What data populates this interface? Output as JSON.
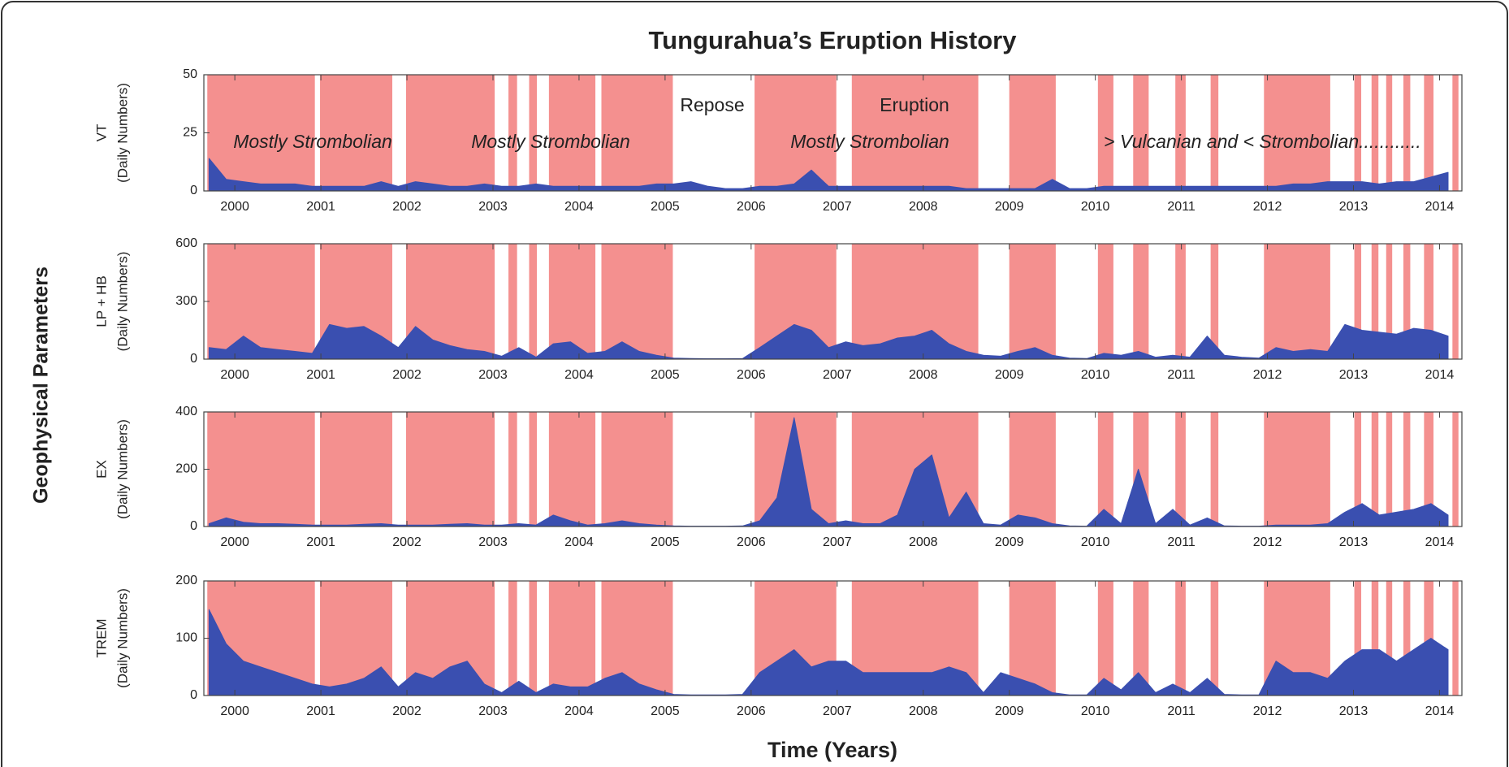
{
  "chart_data": {
    "type": "area",
    "title": "Tungurahua’s Eruption History",
    "xlabel": "Time (Years)",
    "ylabel": "Geophysical Parameters",
    "color": "#3a4fb0",
    "period_color": "#f4908f",
    "xlim": [
      1999.64,
      2014.26
    ],
    "xticks": [
      2000,
      2001,
      2002,
      2003,
      2004,
      2005,
      2006,
      2007,
      2008,
      2009,
      2010,
      2011,
      2012,
      2013,
      2014
    ],
    "eruption_periods": [
      [
        1999.68,
        2000.93
      ],
      [
        2000.99,
        2001.83
      ],
      [
        2001.99,
        2003.02
      ],
      [
        2003.18,
        2003.28
      ],
      [
        2003.42,
        2003.51
      ],
      [
        2003.65,
        2004.19
      ],
      [
        2004.26,
        2005.09
      ],
      [
        2006.04,
        2006.99
      ],
      [
        2007.17,
        2008.64
      ],
      [
        2009.0,
        2009.54
      ],
      [
        2010.03,
        2010.21
      ],
      [
        2010.44,
        2010.62
      ],
      [
        2010.93,
        2011.05
      ],
      [
        2011.34,
        2011.43
      ],
      [
        2011.96,
        2012.73
      ],
      [
        2013.01,
        2013.09
      ],
      [
        2013.21,
        2013.29
      ],
      [
        2013.38,
        2013.45
      ],
      [
        2013.58,
        2013.66
      ],
      [
        2013.82,
        2013.93
      ],
      [
        2014.15,
        2014.22
      ]
    ],
    "annotations": [
      "Mostly Strombolian",
      "Mostly Strombolian",
      "Mostly Strombolian",
      "Repose",
      "Eruption",
      "> Vulcanian and < Strombolian............"
    ],
    "x": [
      1999.7,
      1999.9,
      2000.1,
      2000.3,
      2000.5,
      2000.7,
      2000.9,
      2001.1,
      2001.3,
      2001.5,
      2001.7,
      2001.9,
      2002.1,
      2002.3,
      2002.5,
      2002.7,
      2002.9,
      2003.1,
      2003.3,
      2003.5,
      2003.7,
      2003.9,
      2004.1,
      2004.3,
      2004.5,
      2004.7,
      2004.9,
      2005.1,
      2005.3,
      2005.5,
      2005.7,
      2005.9,
      2006.1,
      2006.3,
      2006.5,
      2006.7,
      2006.9,
      2007.1,
      2007.3,
      2007.5,
      2007.7,
      2007.9,
      2008.1,
      2008.3,
      2008.5,
      2008.7,
      2008.9,
      2009.1,
      2009.3,
      2009.5,
      2009.7,
      2009.9,
      2010.1,
      2010.3,
      2010.5,
      2010.7,
      2010.9,
      2011.1,
      2011.3,
      2011.5,
      2011.7,
      2011.9,
      2012.1,
      2012.3,
      2012.5,
      2012.7,
      2012.9,
      2013.1,
      2013.3,
      2013.5,
      2013.7,
      2013.9,
      2014.1
    ],
    "panels": [
      {
        "ylabel": "VT",
        "yunit": "(Daily Numbers)",
        "ylim": [
          0,
          50
        ],
        "yticks": [
          0,
          25,
          50
        ],
        "values": [
          14,
          5,
          4,
          3,
          3,
          3,
          2,
          2,
          2,
          2,
          4,
          2,
          4,
          3,
          2,
          2,
          3,
          2,
          2,
          3,
          2,
          2,
          2,
          2,
          2,
          2,
          3,
          3,
          4,
          2,
          1,
          1,
          2,
          2,
          3,
          9,
          2,
          2,
          2,
          2,
          2,
          2,
          2,
          2,
          1,
          1,
          1,
          1,
          1,
          5,
          1,
          1,
          2,
          2,
          2,
          2,
          2,
          2,
          2,
          2,
          2,
          2,
          2,
          3,
          3,
          4,
          4,
          4,
          3,
          4,
          4,
          6,
          8
        ]
      },
      {
        "ylabel": "LP + HB",
        "yunit": "(Daily Numbers)",
        "ylim": [
          0,
          600
        ],
        "yticks": [
          0,
          300,
          600
        ],
        "values": [
          60,
          50,
          120,
          60,
          50,
          40,
          30,
          180,
          160,
          170,
          120,
          60,
          170,
          100,
          70,
          50,
          40,
          15,
          60,
          10,
          80,
          90,
          30,
          40,
          90,
          40,
          20,
          5,
          3,
          2,
          2,
          3,
          60,
          120,
          180,
          150,
          60,
          90,
          70,
          80,
          110,
          120,
          150,
          80,
          40,
          20,
          15,
          40,
          60,
          20,
          5,
          3,
          30,
          20,
          40,
          10,
          20,
          10,
          120,
          20,
          10,
          5,
          60,
          40,
          50,
          40,
          180,
          150,
          140,
          130,
          160,
          150,
          120
        ]
      },
      {
        "ylabel": "EX",
        "yunit": "(Daily Numbers)",
        "ylim": [
          0,
          400
        ],
        "yticks": [
          0,
          200,
          400
        ],
        "values": [
          10,
          30,
          15,
          10,
          10,
          8,
          5,
          5,
          5,
          8,
          10,
          5,
          5,
          5,
          8,
          10,
          5,
          5,
          10,
          5,
          40,
          20,
          5,
          10,
          20,
          10,
          5,
          2,
          1,
          1,
          1,
          2,
          20,
          100,
          380,
          60,
          10,
          20,
          10,
          10,
          40,
          200,
          250,
          30,
          120,
          10,
          5,
          40,
          30,
          10,
          2,
          1,
          60,
          10,
          200,
          10,
          60,
          5,
          30,
          2,
          1,
          1,
          5,
          5,
          5,
          10,
          50,
          80,
          40,
          50,
          60,
          80,
          40
        ]
      },
      {
        "ylabel": "TREM",
        "yunit": "(Daily Numbers)",
        "ylim": [
          0,
          200
        ],
        "yticks": [
          0,
          100,
          200
        ],
        "values": [
          150,
          90,
          60,
          50,
          40,
          30,
          20,
          15,
          20,
          30,
          50,
          15,
          40,
          30,
          50,
          60,
          20,
          5,
          25,
          5,
          20,
          15,
          15,
          30,
          40,
          20,
          10,
          2,
          1,
          1,
          1,
          2,
          40,
          60,
          80,
          50,
          60,
          60,
          40,
          40,
          40,
          40,
          40,
          50,
          40,
          5,
          40,
          30,
          20,
          5,
          1,
          1,
          30,
          10,
          40,
          5,
          20,
          5,
          30,
          2,
          1,
          1,
          60,
          40,
          40,
          30,
          60,
          80,
          80,
          60,
          80,
          100,
          80
        ]
      }
    ]
  }
}
